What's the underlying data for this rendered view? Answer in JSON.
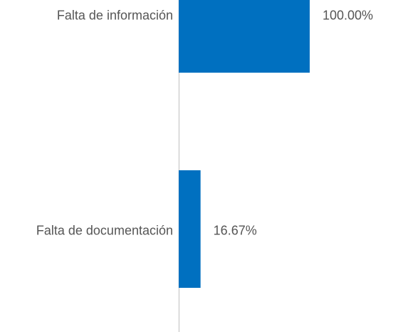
{
  "chart_data": {
    "type": "barh",
    "categories": [
      "Falta de información",
      "Falta de documentación"
    ],
    "values": [
      100,
      16.67
    ],
    "value_labels": [
      "100.00%",
      "16.67%"
    ],
    "color": "#0070c0",
    "xlim": [
      0,
      100
    ]
  }
}
